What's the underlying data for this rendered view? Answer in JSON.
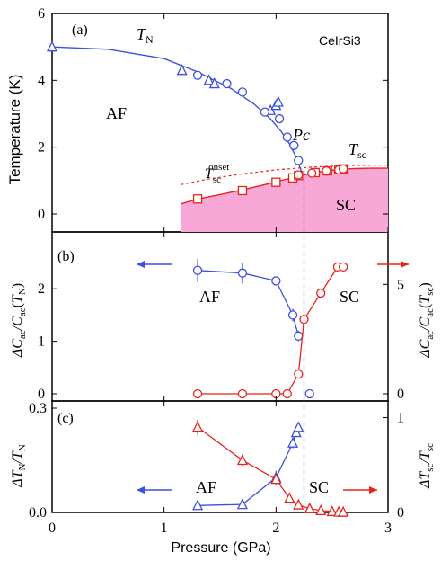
{
  "colors": {
    "af": "#3b4fe0",
    "sc": "#e8231c",
    "sc_fill": "#f7a8d6",
    "axis": "#000000",
    "pc_line": "#3b4fe0"
  },
  "xaxis": {
    "label": "Pressure (GPa)",
    "range": [
      0,
      3
    ],
    "ticks": [
      "0",
      "1",
      "2",
      "3"
    ]
  },
  "chart_data": [
    {
      "type": "scatter",
      "panel_label": "(a)",
      "compound": "CeIrSi3",
      "ylabel": "Temperature (K)",
      "ylim": [
        0,
        6
      ],
      "yticks": [
        "0",
        "2",
        "4",
        "6"
      ],
      "labels": {
        "af": "AF",
        "sc": "SC",
        "pc": "Pc",
        "tn": "T",
        "tn_sub": "N",
        "tsc": "T",
        "tsc_sub": "sc",
        "tonset": "T",
        "tonset_sub": "sc",
        "tonset_sup": "onset"
      },
      "series": [
        {
          "name": "TN",
          "marker": "triangle",
          "color_key": "af",
          "x": [
            0,
            1.16,
            1.4,
            1.45,
            1.95,
            2.0,
            2.02
          ],
          "y": [
            5.0,
            4.3,
            4.0,
            3.9,
            3.1,
            3.25,
            3.35
          ]
        },
        {
          "name": "TN",
          "marker": "circle",
          "color_key": "af",
          "x": [
            1.3,
            1.56,
            1.7,
            1.9,
            2.03,
            2.1,
            2.16,
            2.2
          ],
          "y": [
            4.15,
            3.9,
            3.65,
            3.05,
            2.85,
            2.3,
            2.05,
            1.6
          ]
        },
        {
          "name": "Tsc",
          "marker": "square",
          "color_key": "sc",
          "x": [
            1.3,
            1.7,
            2.0,
            2.15,
            2.2,
            2.35,
            2.46,
            2.56,
            2.6
          ],
          "y": [
            0.45,
            0.7,
            0.95,
            1.08,
            1.15,
            1.24,
            1.29,
            1.33,
            1.35
          ]
        },
        {
          "name": "Tsc",
          "marker": "circle",
          "color_key": "sc",
          "x": [
            2.2,
            2.32,
            2.45,
            2.56,
            2.6
          ],
          "y": [
            1.17,
            1.22,
            1.29,
            1.32,
            1.35
          ]
        }
      ],
      "tn_curve": {
        "x": [
          0,
          0.5,
          1.0,
          1.3,
          1.6,
          1.8,
          1.95,
          2.05,
          2.12,
          2.18,
          2.23
        ],
        "y": [
          5.0,
          4.93,
          4.65,
          4.25,
          3.75,
          3.3,
          2.85,
          2.45,
          2.1,
          1.7,
          1.25
        ]
      },
      "tsc_curve": {
        "x": [
          1.15,
          1.3,
          1.5,
          1.7,
          1.9,
          2.1,
          2.25,
          2.4,
          2.55,
          2.7,
          2.85,
          3.0
        ],
        "y": [
          0.3,
          0.45,
          0.58,
          0.72,
          0.88,
          1.05,
          1.17,
          1.27,
          1.33,
          1.36,
          1.37,
          1.37
        ]
      },
      "tonset_curve": {
        "x": [
          1.15,
          1.4,
          1.7,
          2.0,
          2.3,
          2.6,
          2.9,
          3.0
        ],
        "y": [
          0.88,
          1.05,
          1.2,
          1.32,
          1.4,
          1.45,
          1.46,
          1.46
        ]
      },
      "pc": 2.25
    },
    {
      "type": "scatter",
      "panel_label": "(b)",
      "ylabel_left": "ΔCac/Cac(TN)",
      "ylabel_right": "ΔCac/Cac(Tsc)",
      "ylim_left": [
        0,
        2.5
      ],
      "ylim_right": [
        0,
        6
      ],
      "yticks_left": [
        "0",
        "1",
        "2"
      ],
      "yticks_right": [
        "0",
        "5"
      ],
      "labels": {
        "af": "AF",
        "sc": "SC"
      },
      "series": [
        {
          "name": "AF",
          "marker": "circle",
          "color_key": "af",
          "axis": "left",
          "x": [
            1.3,
            1.7,
            2.0,
            2.15,
            2.2
          ],
          "y": [
            2.35,
            2.3,
            2.15,
            1.5,
            1.1
          ],
          "yerr": [
            0.22,
            0.2,
            0,
            0.12,
            0.1
          ]
        },
        {
          "name": "SC",
          "marker": "circle",
          "color_key": "sc",
          "axis": "right",
          "x": [
            1.3,
            1.7,
            2.0,
            2.1,
            2.2,
            2.25,
            2.4,
            2.55,
            2.6
          ],
          "y": [
            0,
            0,
            0,
            0,
            0.9,
            3.4,
            4.6,
            5.8,
            5.8
          ]
        }
      ],
      "af_zero_point": {
        "x": 2.3,
        "y": 0
      }
    },
    {
      "type": "scatter",
      "panel_label": "(c)",
      "ylabel_left": "ΔTN/TN",
      "ylabel_right": "ΔTsc/Tsc",
      "ylim_left": [
        0,
        0.3
      ],
      "ylim_right": [
        0,
        1.1
      ],
      "yticks_left": [
        "0.0",
        "0.3"
      ],
      "yticks_right": [
        "0",
        "1"
      ],
      "labels": {
        "af": "AF",
        "sc": "SC"
      },
      "series": [
        {
          "name": "AF",
          "marker": "triangle",
          "color_key": "af",
          "axis": "left",
          "x": [
            1.3,
            1.7,
            2.0,
            2.15,
            2.18,
            2.2
          ],
          "y": [
            0.02,
            0.023,
            0.1,
            0.2,
            0.23,
            0.245
          ],
          "yerr": [
            0,
            0,
            0.02,
            0.015,
            0,
            0.012
          ]
        },
        {
          "name": "SC",
          "marker": "triangle",
          "color_key": "sc",
          "axis": "right",
          "x": [
            1.3,
            1.7,
            2.0,
            2.12,
            2.2,
            2.3,
            2.4,
            2.5,
            2.56,
            2.6
          ],
          "y": [
            0.9,
            0.55,
            0.35,
            0.15,
            0.08,
            0.04,
            0.02,
            0.01,
            0.005,
            0.003
          ],
          "yerr": [
            0.08,
            0.06,
            0.05,
            0,
            0,
            0,
            0,
            0,
            0,
            0
          ]
        }
      ]
    }
  ]
}
